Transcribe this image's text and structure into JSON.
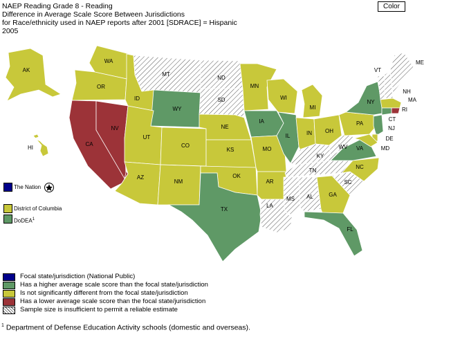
{
  "header": {
    "line1": "NAEP Reading Grade 8 - Reading",
    "line2": "Difference in Average Scale Score Between Jurisdictions",
    "line3": "for Race/ethnicity used in NAEP reports after 2001 [SDRACE] = Hispanic",
    "line4": "2005"
  },
  "color_button": "Color",
  "colors": {
    "focal": "#00008b",
    "higher": "#5f9966",
    "not_different": "#c8c83a",
    "lower": "#9c3338",
    "insufficient": "hatch"
  },
  "states": {
    "WA": {
      "label": "WA",
      "status": "not_different"
    },
    "OR": {
      "label": "OR",
      "status": "not_different"
    },
    "CA": {
      "label": "CA",
      "status": "lower"
    },
    "NV": {
      "label": "NV",
      "status": "lower"
    },
    "ID": {
      "label": "ID",
      "status": "not_different"
    },
    "MT": {
      "label": "MT",
      "status": "insufficient"
    },
    "WY": {
      "label": "WY",
      "status": "higher"
    },
    "UT": {
      "label": "UT",
      "status": "not_different"
    },
    "CO": {
      "label": "CO",
      "status": "not_different"
    },
    "AZ": {
      "label": "AZ",
      "status": "not_different"
    },
    "NM": {
      "label": "NM",
      "status": "not_different"
    },
    "ND": {
      "label": "ND",
      "status": "insufficient"
    },
    "SD": {
      "label": "SD",
      "status": "insufficient"
    },
    "NE": {
      "label": "NE",
      "status": "not_different"
    },
    "KS": {
      "label": "KS",
      "status": "not_different"
    },
    "OK": {
      "label": "OK",
      "status": "not_different"
    },
    "TX": {
      "label": "TX",
      "status": "higher"
    },
    "MN": {
      "label": "MN",
      "status": "not_different"
    },
    "IA": {
      "label": "IA",
      "status": "higher"
    },
    "MO": {
      "label": "MO",
      "status": "not_different"
    },
    "AR": {
      "label": "AR",
      "status": "not_different"
    },
    "LA": {
      "label": "LA",
      "status": "insufficient"
    },
    "WI": {
      "label": "WI",
      "status": "not_different"
    },
    "IL": {
      "label": "IL",
      "status": "higher"
    },
    "MI": {
      "label": "MI",
      "status": "not_different"
    },
    "IN": {
      "label": "IN",
      "status": "not_different"
    },
    "OH": {
      "label": "OH",
      "status": "not_different"
    },
    "KY": {
      "label": "KY",
      "status": "insufficient"
    },
    "TN": {
      "label": "TN",
      "status": "insufficient"
    },
    "MS": {
      "label": "MS",
      "status": "insufficient"
    },
    "AL": {
      "label": "AL",
      "status": "insufficient"
    },
    "GA": {
      "label": "GA",
      "status": "not_different"
    },
    "FL": {
      "label": "FL",
      "status": "higher"
    },
    "SC": {
      "label": "SC",
      "status": "insufficient"
    },
    "NC": {
      "label": "NC",
      "status": "not_different"
    },
    "VA": {
      "label": "VA",
      "status": "higher"
    },
    "WV": {
      "label": "WV",
      "status": "insufficient"
    },
    "PA": {
      "label": "PA",
      "status": "not_different"
    },
    "NY": {
      "label": "NY",
      "status": "higher"
    },
    "VT": {
      "label": "VT",
      "status": "insufficient"
    },
    "NH": {
      "label": "NH",
      "status": "insufficient"
    },
    "ME": {
      "label": "ME",
      "status": "insufficient"
    },
    "MA": {
      "label": "MA",
      "status": "not_different"
    },
    "RI": {
      "label": "RI",
      "status": "lower"
    },
    "CT": {
      "label": "CT",
      "status": "higher"
    },
    "NJ": {
      "label": "NJ",
      "status": "higher"
    },
    "DE": {
      "label": "DE",
      "status": "not_different"
    },
    "MD": {
      "label": "MD",
      "status": "not_different"
    },
    "AK": {
      "label": "AK",
      "status": "not_different"
    },
    "HI": {
      "label": "HI",
      "status": "not_different"
    }
  },
  "side_keys": {
    "nation": {
      "label": "The Nation",
      "status": "focal"
    },
    "dc": {
      "label": "District of Columbia",
      "status": "not_different"
    },
    "dodea": {
      "label": "DoDEA",
      "sup": "1",
      "status": "higher"
    }
  },
  "legend": [
    {
      "status": "focal",
      "label": "Focal state/jurisdiction (National Public)"
    },
    {
      "status": "higher",
      "label": "Has a higher average scale score than the focal state/jurisdiction"
    },
    {
      "status": "not_different",
      "label": "Is not significantly different from the focal state/jurisdiction"
    },
    {
      "status": "lower",
      "label": "Has a lower average scale score than the focal state/jurisdiction"
    },
    {
      "status": "insufficient",
      "label": "Sample size is insufficient to permit a reliable estimate"
    }
  ],
  "footnote": {
    "mark": "1",
    "text": " Department of Defense Education Activity schools (domestic and overseas)."
  }
}
